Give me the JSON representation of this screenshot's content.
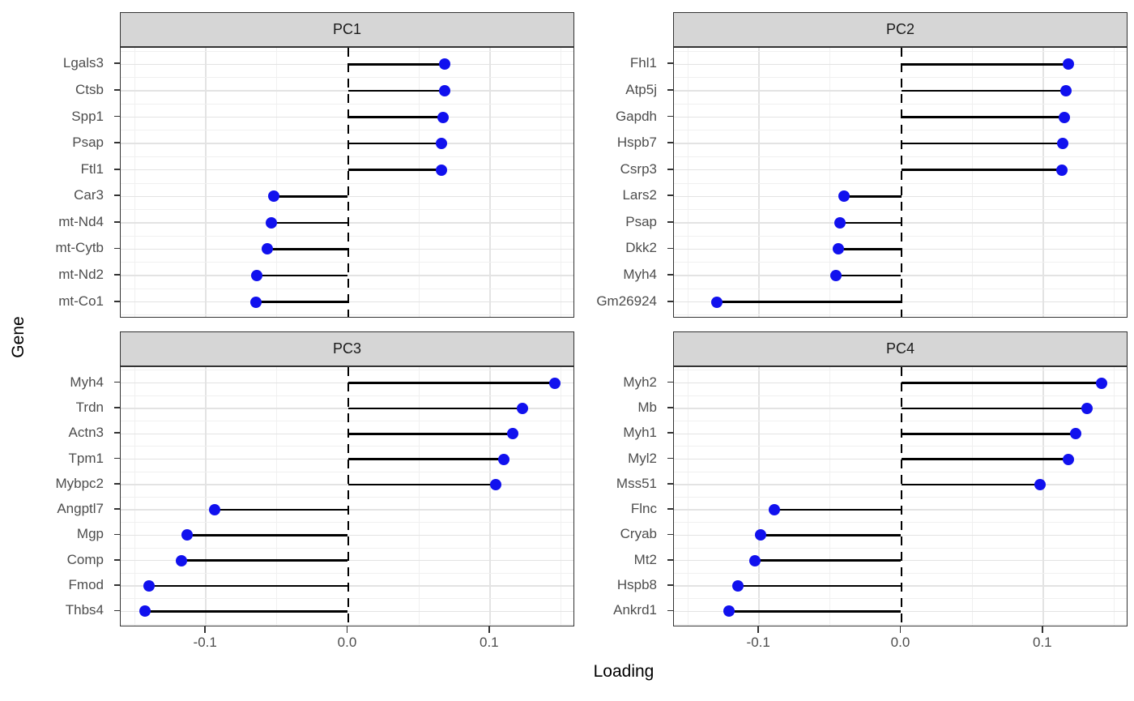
{
  "figure": {
    "description": "Faceted horizontal lollipop chart of top PCA gene loadings, ggplot2 theme_bw style, 2x2 facet grid",
    "facet_labels": [
      "PC1",
      "PC2",
      "PC3",
      "PC4"
    ]
  },
  "chart_data": {
    "type": "lollipop",
    "orientation": "horizontal",
    "title": "",
    "xlabel": "Loading",
    "ylabel": "Gene",
    "xlim": [
      -0.16,
      0.16
    ],
    "xticks": [
      -0.1,
      0.0,
      0.1
    ],
    "xtick_labels": [
      "-0.1",
      "0.0",
      "0.1"
    ],
    "minor_xticks": [
      -0.15,
      -0.05,
      0.05,
      0.15
    ],
    "grid": "major and minor gridlines, light gray on white panel",
    "legend_position": "none",
    "zero_reference": "black dashed vertical line at x = 0 in each facet",
    "facets": [
      {
        "label": "PC1",
        "points": [
          {
            "gene": "Lgals3",
            "value": 0.068
          },
          {
            "gene": "Ctsb",
            "value": 0.068
          },
          {
            "gene": "Spp1",
            "value": 0.067
          },
          {
            "gene": "Psap",
            "value": 0.066
          },
          {
            "gene": "Ftl1",
            "value": 0.066
          },
          {
            "gene": "Car3",
            "value": -0.052
          },
          {
            "gene": "mt-Nd4",
            "value": -0.054
          },
          {
            "gene": "mt-Cytb",
            "value": -0.057
          },
          {
            "gene": "mt-Nd2",
            "value": -0.064
          },
          {
            "gene": "mt-Co1",
            "value": -0.065
          }
        ]
      },
      {
        "label": "PC2",
        "points": [
          {
            "gene": "Fhl1",
            "value": 0.118
          },
          {
            "gene": "Atp5j",
            "value": 0.116
          },
          {
            "gene": "Gapdh",
            "value": 0.115
          },
          {
            "gene": "Hspb7",
            "value": 0.114
          },
          {
            "gene": "Csrp3",
            "value": 0.113
          },
          {
            "gene": "Lars2",
            "value": -0.04
          },
          {
            "gene": "Psap",
            "value": -0.043
          },
          {
            "gene": "Dkk2",
            "value": -0.044
          },
          {
            "gene": "Myh4",
            "value": -0.046
          },
          {
            "gene": "Gm26924",
            "value": -0.13
          }
        ]
      },
      {
        "label": "PC3",
        "points": [
          {
            "gene": "Myh4",
            "value": 0.146
          },
          {
            "gene": "Trdn",
            "value": 0.123
          },
          {
            "gene": "Actn3",
            "value": 0.116
          },
          {
            "gene": "Tpm1",
            "value": 0.11
          },
          {
            "gene": "Mybpc2",
            "value": 0.104
          },
          {
            "gene": "Angptl7",
            "value": -0.094
          },
          {
            "gene": "Mgp",
            "value": -0.113
          },
          {
            "gene": "Comp",
            "value": -0.117
          },
          {
            "gene": "Fmod",
            "value": -0.14
          },
          {
            "gene": "Thbs4",
            "value": -0.143
          }
        ]
      },
      {
        "label": "PC4",
        "points": [
          {
            "gene": "Myh2",
            "value": 0.141
          },
          {
            "gene": "Mb",
            "value": 0.131
          },
          {
            "gene": "Myh1",
            "value": 0.123
          },
          {
            "gene": "Myl2",
            "value": 0.118
          },
          {
            "gene": "Mss51",
            "value": 0.098
          },
          {
            "gene": "Flnc",
            "value": -0.089
          },
          {
            "gene": "Cryab",
            "value": -0.099
          },
          {
            "gene": "Mt2",
            "value": -0.103
          },
          {
            "gene": "Hspb8",
            "value": -0.115
          },
          {
            "gene": "Ankrd1",
            "value": -0.121
          }
        ]
      }
    ]
  },
  "colors": {
    "point": "#1111EE",
    "stem": "#000000",
    "zero_line": "#000000",
    "strip_fill": "#D6D6D6",
    "strip_border": "#333333",
    "strip_text": "#1A1A1A",
    "panel_border": "#333333",
    "grid_major": "#E3E3E3",
    "grid_minor": "#F0F0F0",
    "axis_text": "#4D4D4D",
    "tick_mark": "#333333",
    "background": "#FFFFFF"
  }
}
